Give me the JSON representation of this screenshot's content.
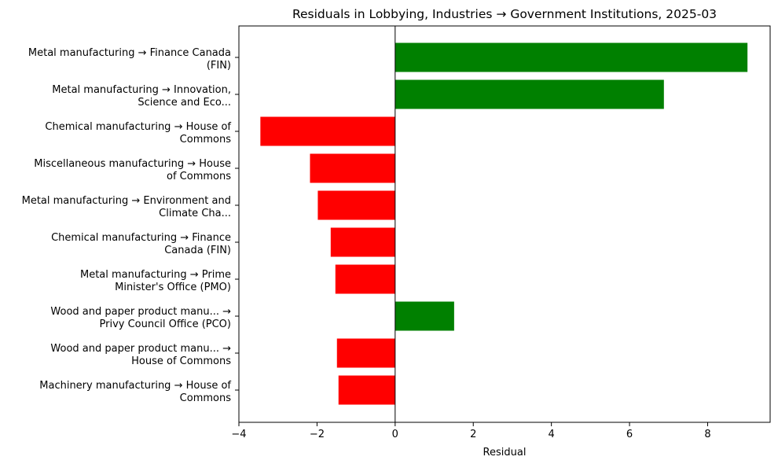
{
  "chart_data": {
    "type": "bar",
    "orientation": "horizontal",
    "title": "Residuals in Lobbying, Industries → Government Institutions, 2025-03",
    "xlabel": "Residual",
    "ylabel": "",
    "xlim": [
      -4.0,
      9.6
    ],
    "xticks": [
      -4,
      -2,
      0,
      2,
      4,
      6,
      8
    ],
    "xtick_labels": [
      "−4",
      "−2",
      "0",
      "2",
      "4",
      "6",
      "8"
    ],
    "grid": false,
    "legend": "none",
    "categories": [
      [
        "Metal manufacturing → Finance Canada",
        "(FIN)"
      ],
      [
        "Metal manufacturing → Innovation,",
        "Science and Eco..."
      ],
      [
        "Chemical manufacturing → House of",
        "Commons"
      ],
      [
        "Miscellaneous manufacturing → House",
        "of Commons"
      ],
      [
        "Metal manufacturing → Environment and",
        "Climate Cha..."
      ],
      [
        "Chemical manufacturing → Finance",
        "Canada (FIN)"
      ],
      [
        "Metal manufacturing → Prime",
        "Minister's Office (PMO)"
      ],
      [
        "Wood and paper product manu... →",
        "Privy Council Office (PCO)"
      ],
      [
        "Wood and paper product manu... →",
        "House of Commons"
      ],
      [
        "Machinery manufacturing → House of",
        "Commons"
      ]
    ],
    "values": [
      9.02,
      6.88,
      -3.45,
      -2.18,
      -1.98,
      -1.65,
      -1.53,
      1.51,
      -1.49,
      -1.45
    ],
    "colors": {
      "positive": "#008000",
      "negative": "#ff0000"
    }
  }
}
